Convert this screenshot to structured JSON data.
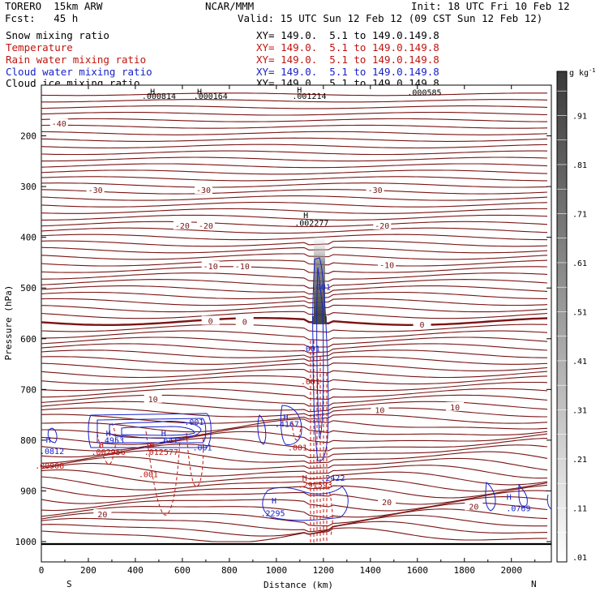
{
  "header": {
    "model": "TORERO  15km ARW",
    "center": "NCAR/MMM",
    "init": "Init: 18 UTC Fri 10 Feb 12",
    "fcst": "Fcst:   45 h",
    "valid": "Valid: 15 UTC Sun 12 Feb 12 (09 CST Sun 12 Feb 12)"
  },
  "fields": [
    {
      "name": "Snow mixing ratio",
      "xy": "XY= 149.0.  5.1 to 149.0.149.8",
      "color": "#000000"
    },
    {
      "name": "Temperature",
      "xy": "XY= 149.0.  5.1 to 149.0.149.8",
      "color": "#c0140f"
    },
    {
      "name": "Rain water mixing ratio",
      "xy": "XY= 149.0.  5.1 to 149.0.149.8",
      "color": "#c0140f"
    },
    {
      "name": "Cloud water mixing ratio",
      "xy": "XY= 149.0.  5.1 to 149.0.149.8",
      "color": "#1722c8"
    },
    {
      "name": "Cloud ice mixing ratio",
      "xy": "XY= 149.0.  5.1 to 149.0.149.8",
      "color": "#000000"
    }
  ],
  "chart_data": {
    "type": "contour-cross-section",
    "xlabel": "Distance (km)",
    "ylabel": "Pressure (hPa)",
    "xlim": [
      0,
      2170
    ],
    "ylim": [
      1040,
      100
    ],
    "x_ticks": [
      "0",
      "200",
      "400",
      "600",
      "800",
      "1000",
      "1200",
      "1400",
      "1600",
      "1800",
      "2000"
    ],
    "x_tick_values": [
      0,
      200,
      400,
      600,
      800,
      1000,
      1200,
      1400,
      1600,
      1800,
      2000
    ],
    "y_ticks": [
      "200",
      "300",
      "400",
      "500",
      "600",
      "700",
      "800",
      "900",
      "1000"
    ],
    "y_tick_values": [
      200,
      300,
      400,
      500,
      600,
      700,
      800,
      900,
      1000
    ],
    "left_end": "S",
    "right_end": "N",
    "colorbar": {
      "unit": "g kg",
      "unit_exp": "-1",
      "labels": [
        ".91",
        ".81",
        ".71",
        ".61",
        ".51",
        ".41",
        ".31",
        ".21",
        ".11",
        ".01"
      ],
      "label_values": [
        0.91,
        0.81,
        0.71,
        0.61,
        0.51,
        0.41,
        0.31,
        0.21,
        0.11,
        0.01
      ]
    },
    "temperature_contour_labels": [
      {
        "text": "-40",
        "x": 75,
        "p": 177
      },
      {
        "text": "-30",
        "x": 230,
        "p": 308
      },
      {
        "text": "-30",
        "x": 690,
        "p": 308
      },
      {
        "text": "-30",
        "x": 1420,
        "p": 308
      },
      {
        "text": "-20",
        "x": 600,
        "p": 378
      },
      {
        "text": "-20",
        "x": 700,
        "p": 378
      },
      {
        "text": "-20",
        "x": 1450,
        "p": 378
      },
      {
        "text": "-10",
        "x": 720,
        "p": 458
      },
      {
        "text": "-10",
        "x": 855,
        "p": 458
      },
      {
        "text": "-10",
        "x": 1470,
        "p": 456
      },
      {
        "text": "0",
        "x": 720,
        "p": 566
      },
      {
        "text": "0",
        "x": 865,
        "p": 568
      },
      {
        "text": "0",
        "x": 1620,
        "p": 573
      },
      {
        "text": "10",
        "x": 475,
        "p": 720
      },
      {
        "text": "10",
        "x": 1440,
        "p": 742
      },
      {
        "text": "10",
        "x": 1760,
        "p": 736
      },
      {
        "text": "20",
        "x": 260,
        "p": 947
      },
      {
        "text": "20",
        "x": 1470,
        "p": 923
      },
      {
        "text": "20",
        "x": 1840,
        "p": 932
      }
    ],
    "extrema_labels": [
      {
        "text": "H",
        "x": 473,
        "p": 118,
        "color": "#000000"
      },
      {
        "text": ".000814",
        "x": 500,
        "p": 127,
        "color": "#000000"
      },
      {
        "text": "H",
        "x": 673,
        "p": 118,
        "color": "#000000"
      },
      {
        "text": ".000164",
        "x": 720,
        "p": 127,
        "color": "#000000"
      },
      {
        "text": "H",
        "x": 1098,
        "p": 115,
        "color": "#000000"
      },
      {
        "text": ".001214",
        "x": 1140,
        "p": 127,
        "color": "#000000"
      },
      {
        "text": ".000585",
        "x": 1630,
        "p": 120,
        "color": "#000000"
      },
      {
        "text": "H",
        "x": 1125,
        "p": 362,
        "color": "#000000"
      },
      {
        "text": ".002277",
        "x": 1150,
        "p": 377,
        "color": "#000000"
      },
      {
        "text": ".001",
        "x": 1190,
        "p": 504,
        "color": "#1722c8"
      },
      {
        "text": ".001",
        "x": 1145,
        "p": 625,
        "color": "#1722c8"
      },
      {
        "text": ".001",
        "x": 1145,
        "p": 690,
        "color": "#c0140f"
      },
      {
        "text": "H",
        "x": 30,
        "p": 805,
        "color": "#1722c8"
      },
      {
        "text": ".0812",
        "x": 45,
        "p": 827,
        "color": "#1722c8"
      },
      {
        "text": ".00908",
        "x": 35,
        "p": 856,
        "color": "#c0140f"
      },
      {
        "text": "H",
        "x": 285,
        "p": 792,
        "color": "#1722c8"
      },
      {
        "text": ".4953",
        "x": 300,
        "p": 806,
        "color": "#1722c8"
      },
      {
        "text": "H",
        "x": 255,
        "p": 815,
        "color": "#c0140f"
      },
      {
        "text": ".002956",
        "x": 285,
        "p": 829,
        "color": "#c0140f"
      },
      {
        "text": "H",
        "x": 520,
        "p": 792,
        "color": "#1722c8"
      },
      {
        "text": ".641",
        "x": 540,
        "p": 806,
        "color": "#1722c8"
      },
      {
        "text": "H",
        "x": 470,
        "p": 815,
        "color": "#c0140f"
      },
      {
        "text": ".012577",
        "x": 510,
        "p": 829,
        "color": "#c0140f"
      },
      {
        "text": ".001",
        "x": 650,
        "p": 770,
        "color": "#1722c8"
      },
      {
        "text": ".001",
        "x": 685,
        "p": 820,
        "color": "#1722c8"
      },
      {
        "text": ".001",
        "x": 455,
        "p": 873,
        "color": "#c0140f"
      },
      {
        "text": "H",
        "x": 1040,
        "p": 760,
        "color": "#1722c8"
      },
      {
        "text": ".4167",
        "x": 1045,
        "p": 774,
        "color": "#1722c8"
      },
      {
        "text": ".001",
        "x": 1090,
        "p": 820,
        "color": "#c0140f"
      },
      {
        "text": ".2422",
        "x": 1240,
        "p": 880,
        "color": "#1722c8"
      },
      {
        "text": "H",
        "x": 1120,
        "p": 880,
        "color": "#c0140f"
      },
      {
        "text": ".291593",
        "x": 1165,
        "p": 894,
        "color": "#c0140f"
      },
      {
        "text": "H",
        "x": 990,
        "p": 925,
        "color": "#1722c8"
      },
      {
        "text": ".2295",
        "x": 985,
        "p": 950,
        "color": "#1722c8"
      },
      {
        "text": "H",
        "x": 1990,
        "p": 918,
        "color": "#1722c8"
      },
      {
        "text": ".0769",
        "x": 2030,
        "p": 940,
        "color": "#1722c8"
      }
    ]
  }
}
